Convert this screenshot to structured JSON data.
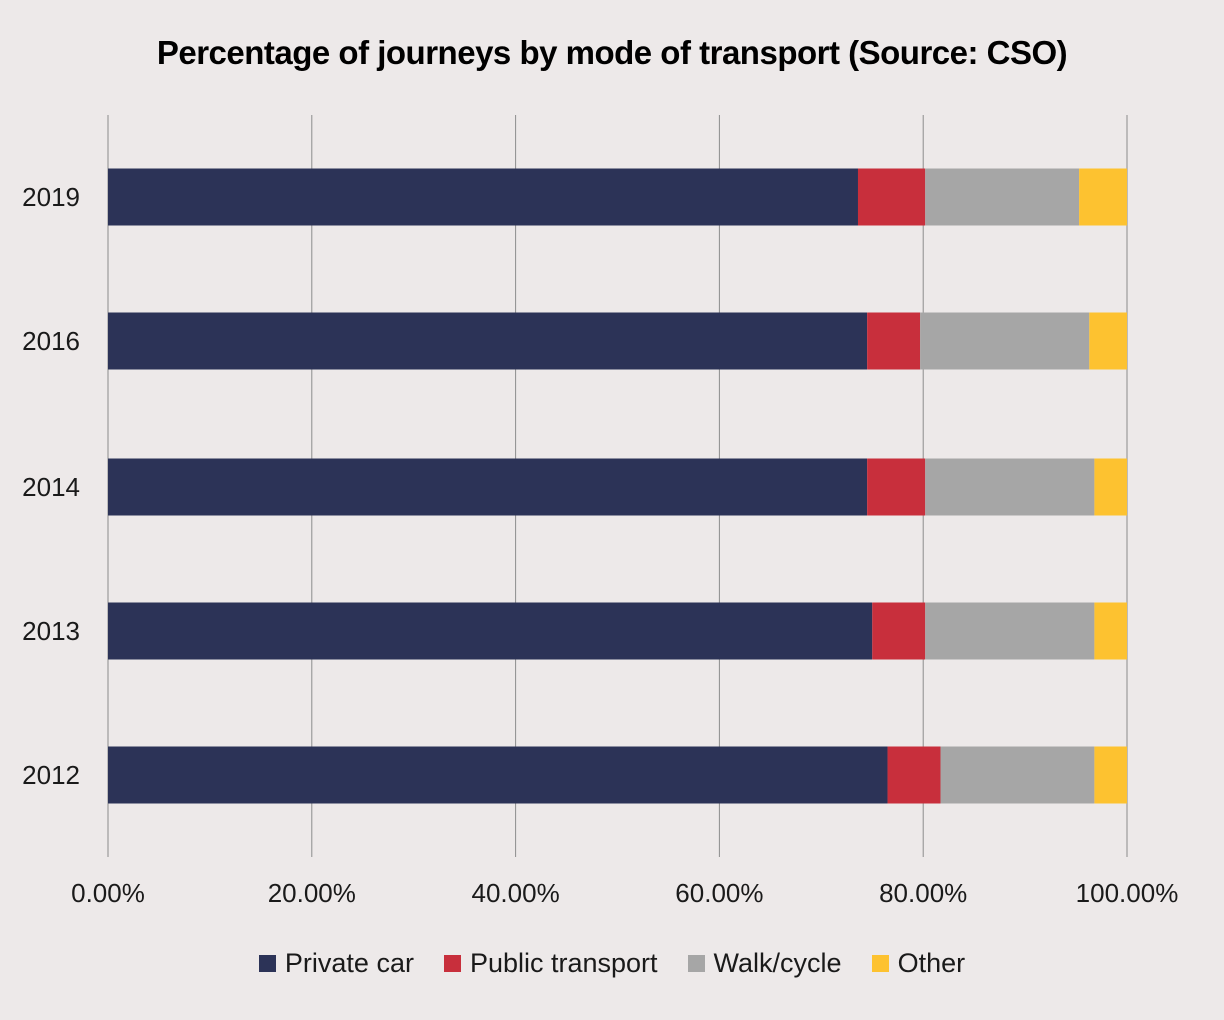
{
  "chart_data": {
    "type": "bar",
    "orientation": "horizontal",
    "stacked": true,
    "title": "Percentage of journeys by mode of transport (Source: CSO)",
    "categories": [
      "2019",
      "2016",
      "2014",
      "2013",
      "2012"
    ],
    "series": [
      {
        "name": "Private car",
        "color": "#2c3357",
        "values": [
          73.6,
          74.5,
          74.5,
          75.0,
          76.5
        ]
      },
      {
        "name": "Public transport",
        "color": "#c82f3c",
        "values": [
          6.6,
          5.2,
          5.7,
          5.2,
          5.2
        ]
      },
      {
        "name": "Walk/cycle",
        "color": "#a6a6a6",
        "values": [
          15.1,
          16.6,
          16.6,
          16.6,
          15.1
        ]
      },
      {
        "name": "Other",
        "color": "#fdc230",
        "values": [
          4.7,
          3.7,
          3.2,
          3.2,
          3.2
        ]
      }
    ],
    "x_ticks": [
      "0.00%",
      "20.00%",
      "40.00%",
      "60.00%",
      "80.00%",
      "100.00%"
    ],
    "xlim": [
      0,
      100
    ],
    "grid": true,
    "legend_position": "bottom"
  }
}
